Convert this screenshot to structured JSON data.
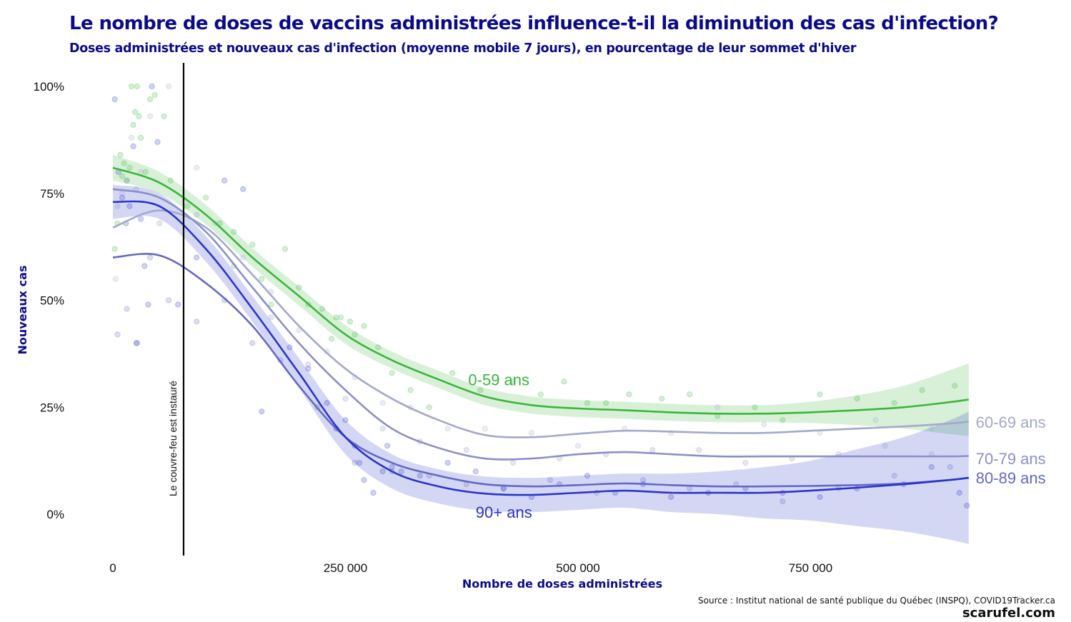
{
  "title": "Le nombre de doses de vaccins administrées influence-t-il la diminution des cas d'infection?",
  "subtitle": "Doses administrées et nouveaux cas d'infection (moyenne mobile 7 jours), en pourcentage de leur sommet d'hiver",
  "source": "Source : Institut national de santé publique du Québec (INSPQ), COVID19Tracker.ca",
  "brand": "scarufel.com",
  "chart_data": {
    "type": "line",
    "xlabel": "Nombre de doses administrées",
    "ylabel": "Nouveaux cas",
    "xlim": [
      0,
      920000
    ],
    "ylim": [
      -0.1,
      1.05
    ],
    "x_ticks": [
      {
        "value": 0,
        "label": "0"
      },
      {
        "value": 250000,
        "label": "250 000"
      },
      {
        "value": 500000,
        "label": "500 000"
      },
      {
        "value": 750000,
        "label": "750 000"
      }
    ],
    "y_ticks": [
      {
        "value": 0,
        "label": "0%"
      },
      {
        "value": 0.25,
        "label": "25%"
      },
      {
        "value": 0.5,
        "label": "50%"
      },
      {
        "value": 0.75,
        "label": "75%"
      },
      {
        "value": 1.0,
        "label": "100%"
      }
    ],
    "grid": false,
    "legend": "direct labels",
    "annotation": {
      "x": 76000,
      "label": "Le couvre-feu est instauré"
    },
    "series": [
      {
        "name": "0-59 ans",
        "color": "#3ab53a",
        "x": [
          0,
          50000,
          100000,
          150000,
          200000,
          250000,
          300000,
          350000,
          400000,
          450000,
          500000,
          550000,
          600000,
          650000,
          700000,
          750000,
          800000,
          850000,
          900000,
          920000
        ],
        "y": [
          0.81,
          0.775,
          0.7,
          0.6,
          0.51,
          0.42,
          0.36,
          0.315,
          0.275,
          0.255,
          0.247,
          0.243,
          0.238,
          0.235,
          0.235,
          0.238,
          0.243,
          0.25,
          0.262,
          0.268
        ],
        "band_half_width": [
          0.03,
          0.025,
          0.023,
          0.022,
          0.022,
          0.022,
          0.02,
          0.02,
          0.02,
          0.02,
          0.02,
          0.02,
          0.02,
          0.02,
          0.02,
          0.025,
          0.035,
          0.05,
          0.075,
          0.085
        ],
        "label_x": 382000,
        "label_y": 0.315,
        "points_x": [
          2000,
          5000,
          8000,
          10000,
          12000,
          15000,
          18000,
          20000,
          22000,
          24000,
          26000,
          28000,
          30000,
          35000,
          40000,
          45000,
          55000,
          62000,
          80000,
          100000,
          115000,
          130000,
          150000,
          160000,
          170000,
          185000,
          200000,
          210000,
          225000,
          235000,
          240000,
          245000,
          255000,
          260000,
          270000,
          285000,
          300000,
          320000,
          340000,
          365000,
          395000,
          430000,
          460000,
          485000,
          510000,
          530000,
          555000,
          590000,
          620000,
          650000,
          690000,
          720000,
          760000,
          800000,
          840000,
          870000,
          905000
        ],
        "points_y": [
          0.62,
          0.68,
          0.84,
          0.79,
          0.82,
          0.78,
          0.81,
          1.0,
          0.91,
          0.94,
          1.0,
          0.93,
          0.88,
          0.8,
          0.97,
          0.98,
          0.93,
          0.78,
          0.72,
          0.74,
          0.68,
          0.66,
          0.63,
          0.55,
          0.49,
          0.62,
          0.53,
          0.49,
          0.48,
          0.41,
          0.46,
          0.46,
          0.45,
          0.42,
          0.44,
          0.39,
          0.33,
          0.29,
          0.25,
          0.33,
          0.29,
          0.31,
          0.28,
          0.31,
          0.26,
          0.26,
          0.28,
          0.27,
          0.28,
          0.23,
          0.25,
          0.22,
          0.28,
          0.27,
          0.26,
          0.29,
          0.3
        ]
      },
      {
        "name": "60-69 ans",
        "color": "#a4a8cc",
        "x": [
          0,
          50000,
          100000,
          150000,
          200000,
          250000,
          300000,
          350000,
          400000,
          450000,
          500000,
          550000,
          600000,
          650000,
          700000,
          750000,
          800000,
          850000,
          900000,
          920000
        ],
        "y": [
          0.67,
          0.71,
          0.67,
          0.56,
          0.44,
          0.34,
          0.27,
          0.22,
          0.185,
          0.18,
          0.188,
          0.195,
          0.193,
          0.19,
          0.19,
          0.195,
          0.2,
          0.205,
          0.212,
          0.216
        ],
        "label_x": 920000,
        "label_y": 0.215,
        "points_x": [
          3000,
          10000,
          20000,
          30000,
          40000,
          60000,
          90000,
          110000,
          140000,
          170000,
          200000,
          230000,
          260000,
          290000,
          320000,
          360000,
          400000,
          450000,
          500000,
          550000,
          600000,
          650000,
          700000,
          760000,
          820000,
          880000
        ],
        "points_y": [
          0.55,
          0.75,
          0.88,
          0.8,
          0.93,
          1.0,
          0.81,
          0.68,
          0.6,
          0.52,
          0.43,
          0.38,
          0.32,
          0.26,
          0.25,
          0.2,
          0.2,
          0.19,
          0.16,
          0.2,
          0.19,
          0.25,
          0.21,
          0.19,
          0.22,
          0.2
        ]
      },
      {
        "name": "70-79 ans",
        "color": "#8b8fc8",
        "x": [
          0,
          50000,
          100000,
          150000,
          200000,
          250000,
          300000,
          350000,
          400000,
          450000,
          500000,
          550000,
          600000,
          650000,
          700000,
          750000,
          800000,
          850000,
          900000,
          920000
        ],
        "y": [
          0.76,
          0.74,
          0.66,
          0.53,
          0.4,
          0.29,
          0.2,
          0.155,
          0.13,
          0.13,
          0.14,
          0.145,
          0.14,
          0.135,
          0.135,
          0.135,
          0.135,
          0.135,
          0.135,
          0.136
        ],
        "label_x": 920000,
        "label_y": 0.13,
        "points_x": [
          5000,
          15000,
          25000,
          50000,
          90000,
          130000,
          170000,
          210000,
          250000,
          290000,
          330000,
          380000,
          430000,
          480000,
          530000,
          580000,
          630000,
          680000,
          730000,
          780000,
          830000,
          880000
        ],
        "points_y": [
          0.72,
          0.78,
          0.76,
          0.68,
          0.7,
          0.58,
          0.46,
          0.35,
          0.27,
          0.2,
          0.17,
          0.15,
          0.12,
          0.13,
          0.14,
          0.15,
          0.15,
          0.12,
          0.13,
          0.14,
          0.16,
          0.14
        ]
      },
      {
        "name": "80-89 ans",
        "color": "#6268c8",
        "x": [
          0,
          50000,
          100000,
          150000,
          200000,
          250000,
          300000,
          350000,
          400000,
          450000,
          500000,
          550000,
          600000,
          650000,
          700000,
          750000,
          800000,
          850000,
          900000,
          920000
        ],
        "y": [
          0.6,
          0.605,
          0.54,
          0.44,
          0.3,
          0.18,
          0.12,
          0.09,
          0.07,
          0.065,
          0.068,
          0.072,
          0.068,
          0.065,
          0.065,
          0.066,
          0.068,
          0.072,
          0.08,
          0.085
        ],
        "label_x": 920000,
        "label_y": 0.085,
        "points_x": [
          5000,
          15000,
          25000,
          40000,
          60000,
          90000,
          120000,
          150000,
          180000,
          220000,
          260000,
          300000,
          340000,
          380000,
          420000,
          470000,
          520000,
          570000,
          620000,
          670000,
          720000,
          780000,
          840000,
          900000
        ],
        "points_y": [
          0.42,
          0.48,
          0.4,
          0.6,
          0.5,
          0.45,
          0.5,
          0.4,
          0.36,
          0.25,
          0.12,
          0.1,
          0.09,
          0.07,
          0.06,
          0.08,
          0.05,
          0.08,
          0.06,
          0.07,
          0.03,
          0.06,
          0.09,
          0.11
        ]
      },
      {
        "name": "90+ ans",
        "color": "#2a35c8",
        "x": [
          0,
          50000,
          100000,
          150000,
          200000,
          250000,
          300000,
          350000,
          400000,
          450000,
          500000,
          550000,
          600000,
          650000,
          700000,
          750000,
          800000,
          850000,
          900000,
          920000
        ],
        "y": [
          0.73,
          0.72,
          0.62,
          0.48,
          0.33,
          0.18,
          0.1,
          0.065,
          0.048,
          0.045,
          0.05,
          0.055,
          0.05,
          0.05,
          0.05,
          0.055,
          0.062,
          0.07,
          0.08,
          0.085
        ],
        "band_half_width": [
          0.04,
          0.03,
          0.03,
          0.03,
          0.035,
          0.04,
          0.04,
          0.04,
          0.04,
          0.04,
          0.04,
          0.04,
          0.045,
          0.05,
          0.06,
          0.07,
          0.09,
          0.11,
          0.14,
          0.155
        ],
        "label_x": 390000,
        "label_y": 0.005,
        "points_x": [
          2000,
          6000,
          10000,
          14000,
          18000,
          22000,
          26000,
          30000,
          34000,
          38000,
          42000,
          48000,
          70000,
          90000,
          120000,
          140000,
          160000,
          190000,
          210000,
          230000,
          240000,
          250000,
          260000,
          265000,
          270000,
          280000,
          290000,
          295000,
          300000,
          310000,
          330000,
          360000,
          390000,
          420000,
          450000,
          480000,
          510000,
          540000,
          570000,
          600000,
          640000,
          680000,
          720000,
          760000,
          800000,
          850000,
          880000,
          910000,
          918000
        ],
        "points_y": [
          0.97,
          0.8,
          0.74,
          0.68,
          0.72,
          0.86,
          0.4,
          0.69,
          0.58,
          0.49,
          1.0,
          0.87,
          0.49,
          0.6,
          0.78,
          0.76,
          0.24,
          0.39,
          0.34,
          0.26,
          0.2,
          0.22,
          0.16,
          0.12,
          0.08,
          0.05,
          0.1,
          0.16,
          0.11,
          0.1,
          0.09,
          0.12,
          0.1,
          0.06,
          0.04,
          0.07,
          0.09,
          0.05,
          0.07,
          0.04,
          0.05,
          0.06,
          0.05,
          0.04,
          0.06,
          0.07,
          0.11,
          0.05,
          0.02
        ]
      }
    ]
  }
}
